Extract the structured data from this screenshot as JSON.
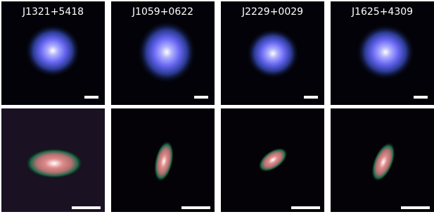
{
  "columns": [
    {
      "label": "J1321+5418"
    },
    {
      "label": "J1059+0622"
    },
    {
      "label": "J2229+0029"
    },
    {
      "label": "J1625+4309"
    }
  ]
}
